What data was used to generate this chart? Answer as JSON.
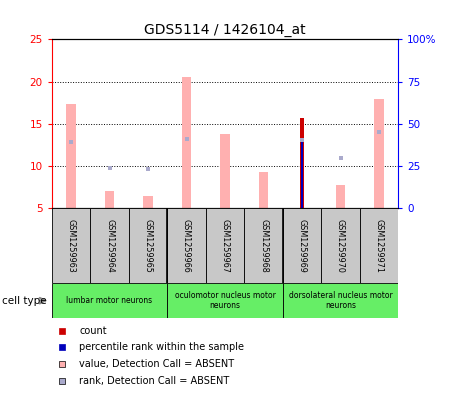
{
  "title": "GDS5114 / 1426104_at",
  "samples": [
    "GSM1259963",
    "GSM1259964",
    "GSM1259965",
    "GSM1259966",
    "GSM1259967",
    "GSM1259968",
    "GSM1259969",
    "GSM1259970",
    "GSM1259971"
  ],
  "value_absent": [
    17.3,
    7.0,
    6.5,
    20.5,
    13.8,
    null,
    null,
    7.8,
    17.9
  ],
  "rank_absent_bars": [
    null,
    null,
    null,
    null,
    11.8,
    9.3,
    null,
    null,
    null
  ],
  "count_value": [
    null,
    null,
    null,
    null,
    null,
    null,
    15.7,
    null,
    null
  ],
  "percentile_value": [
    null,
    null,
    null,
    null,
    null,
    null,
    12.8,
    null,
    null
  ],
  "rank_absent_dots": [
    12.8,
    9.8,
    9.7,
    13.2,
    null,
    null,
    13.1,
    11.0,
    14.0
  ],
  "value_absent_last": [
    null,
    null,
    null,
    null,
    null,
    null,
    null,
    null,
    null
  ],
  "ylim_left": [
    5,
    25
  ],
  "ylim_right": [
    0,
    100
  ],
  "yticks_left": [
    5,
    10,
    15,
    20,
    25
  ],
  "yticks_right": [
    0,
    25,
    50,
    75,
    100
  ],
  "ytick_labels_right": [
    "0",
    "25",
    "50",
    "75",
    "100%"
  ],
  "cell_types": [
    {
      "label": "lumbar motor neurons",
      "start": 0,
      "end": 2
    },
    {
      "label": "oculomotor nucleus motor\nneurons",
      "start": 3,
      "end": 5
    },
    {
      "label": "dorsolateral nucleus motor\nneurons",
      "start": 6,
      "end": 8
    }
  ],
  "green_color": "#66ee66",
  "gray_color": "#c8c8c8",
  "color_count": "#cc0000",
  "color_percentile": "#0000bb",
  "color_value_absent": "#ffb0b0",
  "color_rank_absent_dot": "#aaaacc",
  "color_rank_absent_bar": "#ffb0b0",
  "legend_items": [
    {
      "label": "count",
      "color": "#cc0000"
    },
    {
      "label": "percentile rank within the sample",
      "color": "#0000bb"
    },
    {
      "label": "value, Detection Call = ABSENT",
      "color": "#ffb0b0"
    },
    {
      "label": "rank, Detection Call = ABSENT",
      "color": "#aaaacc"
    }
  ]
}
